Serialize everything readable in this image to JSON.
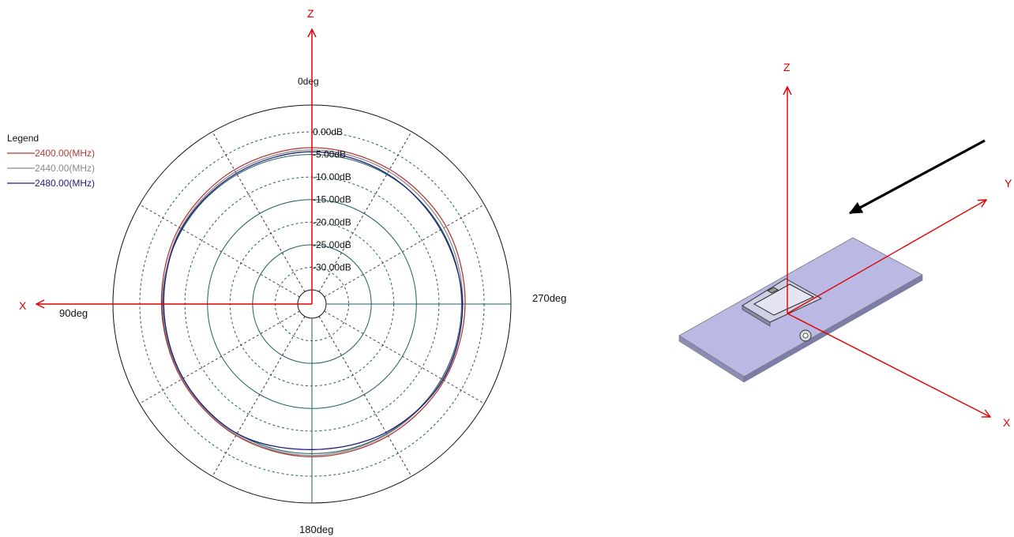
{
  "chart_data": {
    "type": "polar-line",
    "angle_labels": {
      "top": "0deg",
      "left": "90deg",
      "bottom": "180deg",
      "right": "270deg"
    },
    "radial_unit": "dB",
    "radial_range": [
      -35,
      0
    ],
    "radial_ticks": [
      {
        "value": 0,
        "label": "0.00dB"
      },
      {
        "value": -5,
        "label": "-5.00dB"
      },
      {
        "value": -10,
        "label": "-10.00dB"
      },
      {
        "value": -15,
        "label": "-15.00dB"
      },
      {
        "value": -20,
        "label": "-20.00dB"
      },
      {
        "value": -25,
        "label": "-25.00dB"
      },
      {
        "value": -30,
        "label": "-30.00dB"
      }
    ],
    "legend": {
      "title": "Legend",
      "placement": "top-left"
    },
    "series": [
      {
        "name": "2400.00(MHz)",
        "color": "#b03a3a",
        "angles": [
          0,
          30,
          60,
          90,
          120,
          150,
          180,
          210,
          240,
          270,
          300,
          330
        ],
        "values": [
          -3.5,
          -3.8,
          -4.2,
          -4.8,
          -4.8,
          -4.5,
          -4.3,
          -4.4,
          -4.3,
          -4.2,
          -3.8,
          -3.7
        ]
      },
      {
        "name": "2440.00(MHz)",
        "color": "#8a8a8a",
        "angles": [
          0,
          30,
          60,
          90,
          120,
          150,
          180,
          210,
          240,
          270,
          300,
          330
        ],
        "values": [
          -4.0,
          -4.3,
          -4.6,
          -5.2,
          -5.0,
          -4.7,
          -4.6,
          -4.8,
          -4.8,
          -4.7,
          -4.4,
          -4.2
        ]
      },
      {
        "name": "2480.00(MHz)",
        "color": "#1c1c7a",
        "angles": [
          0,
          30,
          60,
          90,
          120,
          150,
          180,
          210,
          240,
          270,
          300,
          330
        ],
        "values": [
          -4.4,
          -4.7,
          -4.8,
          -5.3,
          -5.2,
          -5.0,
          -5.9,
          -5.3,
          -4.6,
          -4.8,
          -5.2,
          -4.8
        ]
      }
    ]
  },
  "overlay": {
    "axis_color": "#e00000",
    "left_axes": {
      "vertical_label": "Z",
      "horizontal_label": "X"
    },
    "right_axes": {
      "z_label": "Z",
      "y_label": "Y",
      "x_label": "X"
    }
  },
  "model": {
    "board_color": "#b9b9e4",
    "arrow_color": "#000000"
  }
}
